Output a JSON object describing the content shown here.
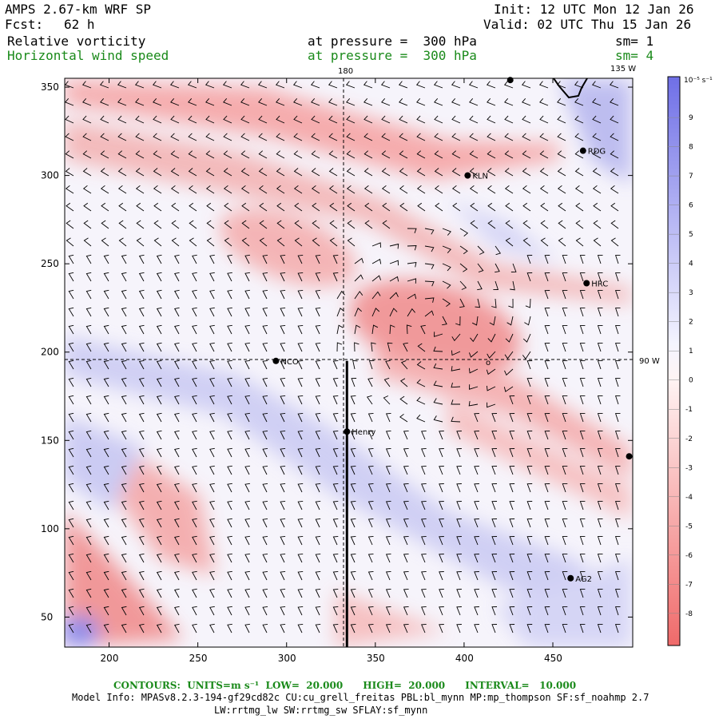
{
  "header": {
    "model": "AMPS 2.67-km WRF SP",
    "fcst_label": "Fcst:",
    "fcst_value": "62 h",
    "init": "Init: 12 UTC Mon 12 Jan 26",
    "valid": "Valid: 02 UTC Thu 15 Jan 26",
    "field1_name": "Relative vorticity",
    "field1_level": "at pressure =  300 hPa",
    "field1_sm": "sm= 1",
    "field2_name": "Horizontal wind speed",
    "field2_level": "at pressure =  300 hPa",
    "field2_sm": "sm= 4"
  },
  "map": {
    "x_ticks": [
      "200",
      "250",
      "300",
      "350",
      "400",
      "450"
    ],
    "y_ticks": [
      "350",
      "300",
      "250",
      "200",
      "150",
      "100",
      "50"
    ],
    "x_range": [
      175,
      495
    ],
    "y_range": [
      33,
      355
    ],
    "lon_label_180": "180",
    "lon_label_135w": "135 W",
    "lon_label_90w": "90 W",
    "stations": [
      {
        "name": "NCO",
        "x": 294,
        "y": 195
      },
      {
        "name": "KLN",
        "x": 402,
        "y": 300
      },
      {
        "name": "RDG",
        "x": 467,
        "y": 314
      },
      {
        "name": "HRC",
        "x": 469,
        "y": 239
      },
      {
        "name": "Henry",
        "x": 334,
        "y": 155
      },
      {
        "name": "AG2",
        "x": 460,
        "y": 72
      },
      {
        "name": "",
        "x": 426,
        "y": 354
      },
      {
        "name": "",
        "x": 493,
        "y": 141
      }
    ],
    "cross_section": {
      "x": 334,
      "y_start": 33,
      "y_end": 195
    },
    "marker_o": "o"
  },
  "colorbar": {
    "units": "10⁻⁵ s⁻¹",
    "labels": [
      "9",
      "8",
      "7",
      "6",
      "5",
      "4",
      "3",
      "2",
      "1",
      "0",
      "-1",
      "-2",
      "-3",
      "-4",
      "-5",
      "-6",
      "-7",
      "-8"
    ],
    "positive_color": "#6f6fe6",
    "negative_color": "#f06a6a"
  },
  "footer": {
    "contours": "CONTOURS:  UNITS=m s⁻¹  LOW=  20.000      HIGH=  20.000      INTERVAL=   10.000",
    "model_info": "Model Info: MPASv8.2.3-194-gf29cd82c CU:cu_grell_freitas PBL:bl_mynn MP:mp_thompson SF:sf_noahmp 2.7",
    "model_info2": "LW:rrtmg_lw SW:rrtmg_sw SFLAY:sf_mynn"
  }
}
